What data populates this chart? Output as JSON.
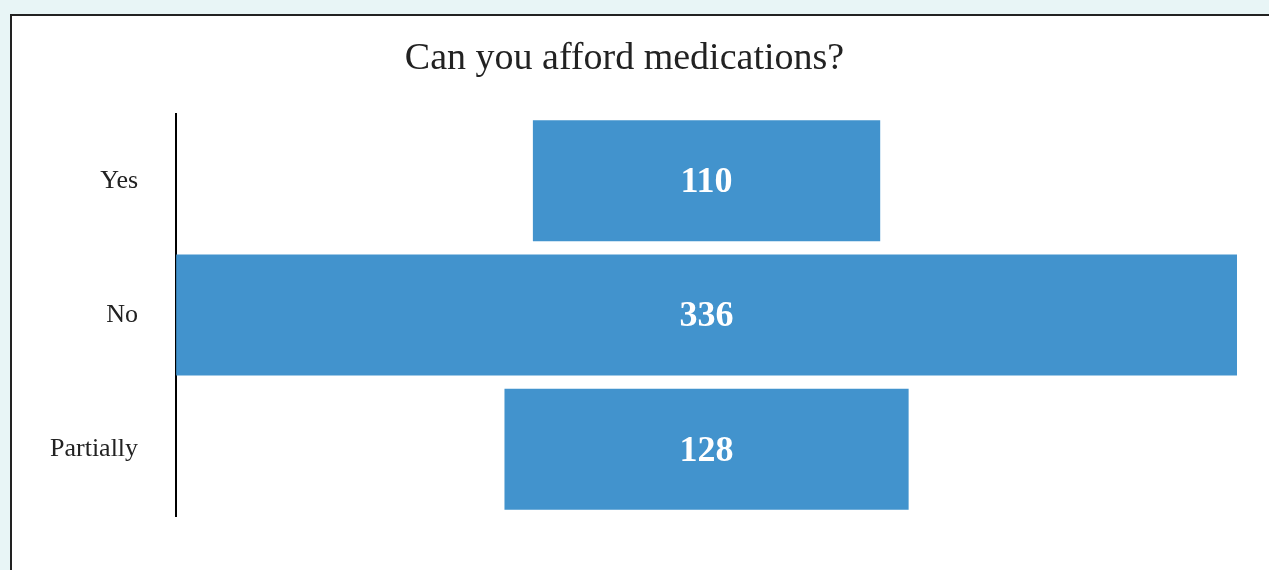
{
  "chart_data": {
    "type": "other",
    "title": "Can you afford medications?",
    "categories": [
      "Yes",
      "No",
      "Partially"
    ],
    "values": [
      110,
      336,
      128
    ],
    "color": "#4293cd",
    "data_labels": true
  }
}
